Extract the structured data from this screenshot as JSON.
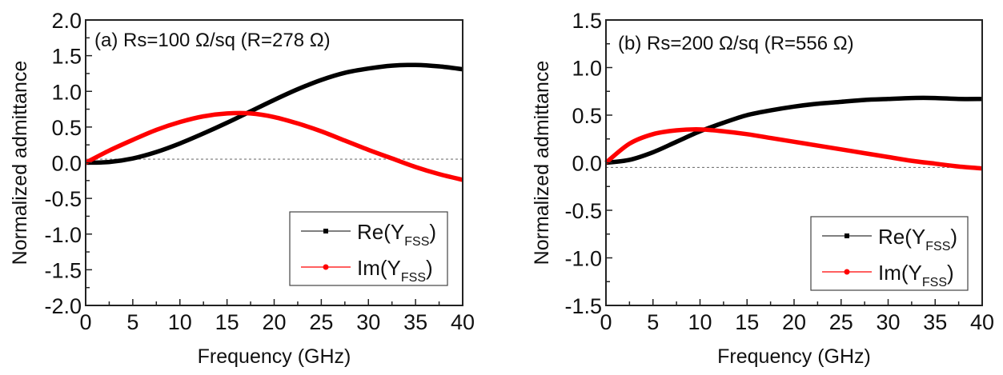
{
  "chart_data": [
    {
      "type": "line",
      "panel": "a",
      "annotation": "(a) Rs=100 Ω/sq (R=278 Ω)",
      "xlabel": "Frequency (GHz)",
      "ylabel": "Normalized admittance",
      "xlim": [
        0,
        40
      ],
      "ylim": [
        -2.0,
        2.0
      ],
      "xticks": [
        0,
        5,
        10,
        15,
        20,
        25,
        30,
        35,
        40
      ],
      "xtick_labels": [
        "0",
        "5",
        "10",
        "15",
        "20",
        "25",
        "30",
        "35",
        "40"
      ],
      "yticks": [
        -2.0,
        -1.5,
        -1.0,
        -0.5,
        0.0,
        0.5,
        1.0,
        1.5,
        2.0
      ],
      "ytick_labels": [
        "-2.0",
        "-1.5",
        "-1.0",
        "-0.5",
        "0.0",
        "0.5",
        "1.0",
        "1.5",
        "2.0"
      ],
      "reference_line": 0.05,
      "grid": false,
      "legend_position": "bottom-right",
      "x": [
        0,
        2.5,
        5,
        7.5,
        10,
        12.5,
        15,
        17.5,
        20,
        22.5,
        25,
        27.5,
        30,
        32.5,
        35,
        37.5,
        40
      ],
      "series": [
        {
          "name": "Re(Y_FSS)",
          "label_main": "Re(Y",
          "label_sub": "FSS",
          "label_end": ")",
          "color": "#000000",
          "values": [
            0,
            0.01,
            0.06,
            0.15,
            0.27,
            0.41,
            0.56,
            0.72,
            0.88,
            1.03,
            1.16,
            1.26,
            1.32,
            1.36,
            1.37,
            1.35,
            1.31
          ]
        },
        {
          "name": "Im(Y_FSS)",
          "label_main": "Im(Y",
          "label_sub": "FSS",
          "label_end": ")",
          "color": "#ff0000",
          "values": [
            0,
            0.17,
            0.32,
            0.46,
            0.57,
            0.65,
            0.69,
            0.69,
            0.64,
            0.55,
            0.44,
            0.31,
            0.18,
            0.06,
            -0.06,
            -0.16,
            -0.24
          ]
        }
      ]
    },
    {
      "type": "line",
      "panel": "b",
      "annotation": "(b) Rs=200 Ω/sq (R=556 Ω)",
      "xlabel": "Frequency (GHz)",
      "ylabel": "Normalized admittance",
      "xlim": [
        0,
        40
      ],
      "ylim": [
        -1.5,
        1.5
      ],
      "xticks": [
        0,
        5,
        10,
        15,
        20,
        25,
        30,
        35,
        40
      ],
      "xtick_labels": [
        "0",
        "5",
        "10",
        "15",
        "20",
        "25",
        "30",
        "35",
        "40"
      ],
      "yticks": [
        -1.5,
        -1.0,
        -0.5,
        0.0,
        0.5,
        1.0,
        1.5
      ],
      "ytick_labels": [
        "-1.5",
        "-1.0",
        "-0.5",
        "0.0",
        "0.5",
        "1.0",
        "1.5"
      ],
      "reference_line": -0.05,
      "grid": false,
      "legend_position": "bottom-right",
      "x": [
        0,
        2.5,
        5,
        7.5,
        10,
        12.5,
        15,
        17.5,
        20,
        22.5,
        25,
        27.5,
        30,
        32.5,
        35,
        37.5,
        40
      ],
      "series": [
        {
          "name": "Re(Y_FSS)",
          "label_main": "Re(Y",
          "label_sub": "FSS",
          "label_end": ")",
          "color": "#000000",
          "values": [
            0,
            0.03,
            0.11,
            0.22,
            0.33,
            0.42,
            0.5,
            0.55,
            0.59,
            0.62,
            0.64,
            0.66,
            0.67,
            0.68,
            0.68,
            0.67,
            0.67
          ]
        },
        {
          "name": "Im(Y_FSS)",
          "label_main": "Im(Y",
          "label_sub": "FSS",
          "label_end": ")",
          "color": "#ff0000",
          "values": [
            0,
            0.2,
            0.3,
            0.34,
            0.35,
            0.33,
            0.3,
            0.26,
            0.22,
            0.18,
            0.14,
            0.1,
            0.06,
            0.02,
            -0.01,
            -0.04,
            -0.06
          ]
        }
      ]
    }
  ]
}
